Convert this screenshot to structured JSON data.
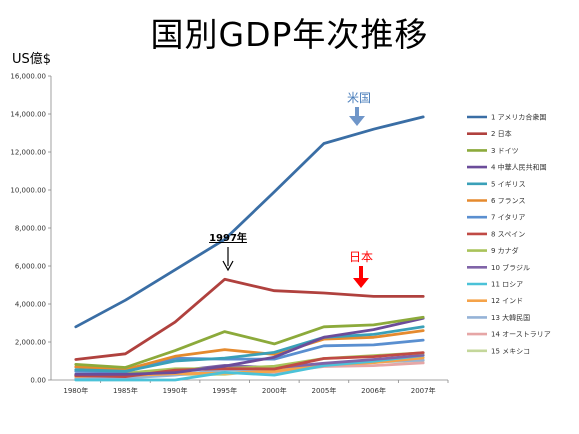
{
  "title": "国別GDP年次推移",
  "unit_label": "US億$",
  "chart_data": {
    "type": "line",
    "title": "国別GDP年次推移",
    "ylabel": "US億$",
    "xlabel": "",
    "categories": [
      "1980年",
      "1985年",
      "1990年",
      "1995年",
      "2000年",
      "2005年",
      "2006年",
      "2007年"
    ],
    "ylim": [
      0,
      16000
    ],
    "yticks": [
      "0.00",
      "2,000.00",
      "4,000.00",
      "6,000.00",
      "8,000.00",
      "10,000.00",
      "12,000.00",
      "14,000.00",
      "16,000.00"
    ],
    "grid": false,
    "legend_position": "right",
    "series": [
      {
        "name": "1 アメリカ合衆国",
        "color": "#3a6ea5",
        "values": [
          2800,
          4200,
          5800,
          7400,
          9900,
          12450,
          13200,
          13850
        ]
      },
      {
        "name": "2 日本",
        "color": "#b0413e",
        "values": [
          1080,
          1380,
          3050,
          5300,
          4700,
          4580,
          4400,
          4400
        ]
      },
      {
        "name": "3 ドイツ",
        "color": "#8caa3b",
        "values": [
          820,
          660,
          1550,
          2550,
          1900,
          2800,
          2900,
          3300
        ]
      },
      {
        "name": "4 中華人民共和国",
        "color": "#6b4c9a",
        "values": [
          300,
          300,
          390,
          730,
          1200,
          2250,
          2650,
          3250
        ]
      },
      {
        "name": "5 イギリス",
        "color": "#3aa0b8",
        "values": [
          540,
          460,
          1000,
          1150,
          1450,
          2250,
          2400,
          2800
        ]
      },
      {
        "name": "6 フランス",
        "color": "#e58a2e",
        "values": [
          690,
          550,
          1250,
          1600,
          1350,
          2150,
          2250,
          2600
        ]
      },
      {
        "name": "7 イタリア",
        "color": "#5a8fd0",
        "values": [
          460,
          430,
          1140,
          1100,
          1100,
          1800,
          1850,
          2100
        ]
      },
      {
        "name": "8 スペイン",
        "color": "#c04a45",
        "values": [
          230,
          180,
          520,
          600,
          580,
          1130,
          1230,
          1440
        ]
      },
      {
        "name": "9 カナダ",
        "color": "#a9c35a",
        "values": [
          270,
          360,
          590,
          600,
          720,
          1130,
          1280,
          1430
        ]
      },
      {
        "name": "10 ブラジル",
        "color": "#8064a8",
        "values": [
          240,
          230,
          470,
          770,
          640,
          880,
          1080,
          1310
        ]
      },
      {
        "name": "11 ロシア",
        "color": "#4bc2d8",
        "values": [
          0,
          0,
          0,
          400,
          260,
          760,
          990,
          1290
        ]
      },
      {
        "name": "12 インド",
        "color": "#f5a34a",
        "values": [
          190,
          230,
          330,
          360,
          460,
          800,
          910,
          1170
        ]
      },
      {
        "name": "13 大韓民国",
        "color": "#95b3d7",
        "values": [
          65,
          100,
          260,
          530,
          540,
          850,
          950,
          1050
        ]
      },
      {
        "name": "14 オーストラリア",
        "color": "#e6a6a6",
        "values": [
          160,
          180,
          310,
          370,
          400,
          710,
          760,
          900
        ]
      },
      {
        "name": "15 メキシコ",
        "color": "#c4d79b",
        "values": [
          230,
          260,
          290,
          290,
          580,
          850,
          950,
          1020
        ]
      }
    ],
    "annotations": [
      {
        "text": "米国",
        "color": "#4a7ebb"
      },
      {
        "text": "日本",
        "color": "#ff0000"
      },
      {
        "text": "1997年",
        "color": "#000000"
      }
    ]
  }
}
